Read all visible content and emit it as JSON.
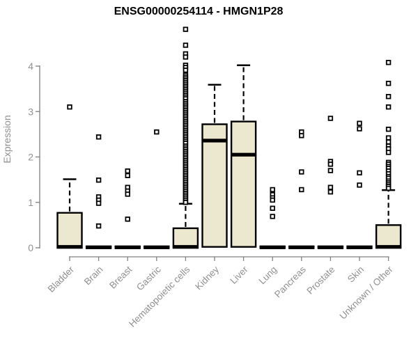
{
  "title": "ENSG00000254114 - HMGN1P28",
  "y_axis": {
    "label": "Expression",
    "ticks": [
      "0",
      "1",
      "2",
      "3",
      "4"
    ],
    "range": [
      0,
      4
    ]
  },
  "x_axis": {
    "categories": [
      "Bladder",
      "Brain",
      "Breast",
      "Gastric",
      "Hematopoietic cells",
      "Kidney",
      "Liver",
      "Lung",
      "Pancreas",
      "Prostate",
      "Skin",
      "Unknown / Other"
    ]
  },
  "colors": {
    "box_fill": "#ece7cf",
    "box_stroke": "#000000",
    "median": "#000000",
    "whisker": "#000000",
    "outlier_stroke": "#000000",
    "outlier_fill": "#ffffff",
    "axis_line": "#808080",
    "axis_text": "#909090",
    "title_text": "#000000",
    "background": "#ffffff"
  },
  "chart_data": {
    "type": "boxplot",
    "title": "ENSG00000254114 - HMGN1P28",
    "xlabel": "",
    "ylabel": "Expression",
    "ylim": [
      0,
      4
    ],
    "yticks": [
      0,
      1,
      2,
      3,
      4
    ],
    "grid": false,
    "legend": "none",
    "categories": [
      "Bladder",
      "Brain",
      "Breast",
      "Gastric",
      "Hematopoietic cells",
      "Kidney",
      "Liver",
      "Lung",
      "Pancreas",
      "Prostate",
      "Skin",
      "Unknown / Other"
    ],
    "boxes": [
      {
        "label": "Bladder",
        "q1": 0,
        "median": 0.02,
        "q3": 0.77,
        "whisker_low": null,
        "whisker_high": 1.51,
        "outliers": [
          3.1
        ]
      },
      {
        "label": "Brain",
        "q1": 0,
        "median": 0.01,
        "q3": 0.03,
        "whisker_low": null,
        "whisker_high": null,
        "outliers": [
          2.44,
          1.49,
          1.12,
          1.05,
          0.98,
          0.48
        ]
      },
      {
        "label": "Breast",
        "q1": 0,
        "median": 0.01,
        "q3": 0.03,
        "whisker_low": null,
        "whisker_high": null,
        "outliers": [
          1.69,
          1.59,
          1.33,
          1.25,
          1.18,
          0.63
        ]
      },
      {
        "label": "Gastric",
        "q1": 0,
        "median": 0.01,
        "q3": 0.03,
        "whisker_low": null,
        "whisker_high": null,
        "outliers": [
          2.55
        ]
      },
      {
        "label": "Hematopoietic cells",
        "q1": 0,
        "median": 0.02,
        "q3": 0.43,
        "whisker_low": null,
        "whisker_high": 0.97,
        "outliers": [
          4.81,
          4.46,
          4.27,
          4.2,
          4.02,
          3.97,
          3.91,
          3.8,
          3.76,
          3.72,
          3.68,
          3.64,
          3.6,
          3.56,
          3.52,
          3.48,
          3.44,
          3.4,
          3.36,
          3.32,
          3.28,
          3.22,
          3.18,
          3.14,
          3.1,
          3.06,
          3.02,
          2.98,
          2.94,
          2.9,
          2.86,
          2.82,
          2.78,
          2.74,
          2.7,
          2.66,
          2.62,
          2.58,
          2.54,
          2.5,
          2.46,
          2.42,
          2.38,
          2.34,
          2.3,
          2.24,
          2.2,
          2.16,
          2.12,
          2.08,
          2.04,
          2.0,
          1.96,
          1.92,
          1.88,
          1.84,
          1.8,
          1.76,
          1.72,
          1.68,
          1.64,
          1.6,
          1.56,
          1.52,
          1.48,
          1.44,
          1.4,
          1.36,
          1.32,
          1.28,
          1.24,
          1.2,
          1.16,
          1.12,
          1.08,
          1.04,
          1.0
        ]
      },
      {
        "label": "Kidney",
        "q1": 0.02,
        "median": 2.36,
        "q3": 2.72,
        "whisker_low": null,
        "whisker_high": 3.59,
        "outliers": []
      },
      {
        "label": "Liver",
        "q1": 0.02,
        "median": 2.05,
        "q3": 2.78,
        "whisker_low": null,
        "whisker_high": 4.02,
        "outliers": []
      },
      {
        "label": "Lung",
        "q1": 0,
        "median": 0.01,
        "q3": 0.03,
        "whisker_low": null,
        "whisker_high": null,
        "outliers": [
          1.28,
          1.17,
          1.1,
          1.05,
          0.87,
          0.69
        ]
      },
      {
        "label": "Pancreas",
        "q1": 0,
        "median": 0.01,
        "q3": 0.03,
        "whisker_low": null,
        "whisker_high": null,
        "outliers": [
          2.55,
          2.47,
          1.67,
          1.28
        ]
      },
      {
        "label": "Prostate",
        "q1": 0,
        "median": 0.01,
        "q3": 0.03,
        "whisker_low": null,
        "whisker_high": null,
        "outliers": [
          2.85,
          1.9,
          1.84,
          1.7,
          1.33,
          1.23
        ]
      },
      {
        "label": "Skin",
        "q1": 0,
        "median": 0.01,
        "q3": 0.03,
        "whisker_low": null,
        "whisker_high": null,
        "outliers": [
          2.74,
          2.62,
          1.65,
          1.38
        ]
      },
      {
        "label": "Unknown / Other",
        "q1": 0,
        "median": 0.02,
        "q3": 0.5,
        "whisker_low": null,
        "whisker_high": 1.27,
        "outliers": [
          4.08,
          3.62,
          3.33,
          3.1,
          2.61,
          2.42,
          2.33,
          2.24,
          2.18,
          2.1,
          1.88,
          1.84,
          1.79,
          1.75,
          1.69,
          1.63,
          1.57,
          1.53,
          1.47,
          1.43,
          1.39,
          1.35,
          1.31
        ]
      }
    ]
  }
}
